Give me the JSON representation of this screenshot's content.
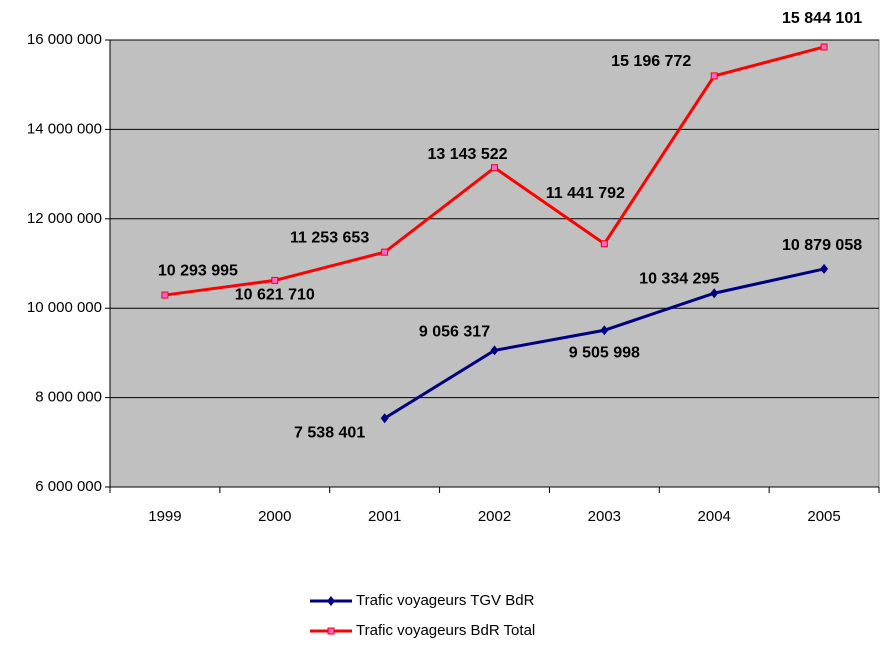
{
  "chart_data": {
    "type": "line",
    "categories": [
      "1999",
      "2000",
      "2001",
      "2002",
      "2003",
      "2004",
      "2005"
    ],
    "series": [
      {
        "name": "Trafic voyageurs TGV BdR",
        "color": "#000080",
        "values": [
          null,
          null,
          7538401,
          9056317,
          9505998,
          10334295,
          10879058
        ],
        "value_labels": [
          null,
          null,
          "7 538 401",
          "9 056 317",
          "9 505 998",
          "10 334 295",
          "10 879 058"
        ]
      },
      {
        "name": "Trafic voyageurs BdR Total",
        "color": "#ff0000",
        "values": [
          10293995,
          10621710,
          11253653,
          13143522,
          11441792,
          15196772,
          15844101
        ],
        "value_labels": [
          "10 293 995",
          "10 621 710",
          "11 253 653",
          "13 143 522",
          "11 441 792",
          "15 196 772",
          "15 844 101"
        ]
      }
    ],
    "ylim": [
      6000000,
      16000000
    ],
    "yticks": [
      {
        "value": 6000000,
        "label": "6 000 000"
      },
      {
        "value": 8000000,
        "label": "8 000 000"
      },
      {
        "value": 10000000,
        "label": "10 000 000"
      },
      {
        "value": 12000000,
        "label": "12 000 000"
      },
      {
        "value": 14000000,
        "label": "14 000 000"
      },
      {
        "value": 16000000,
        "label": "16 000 000"
      }
    ],
    "grid": true,
    "legend": "bottom"
  }
}
